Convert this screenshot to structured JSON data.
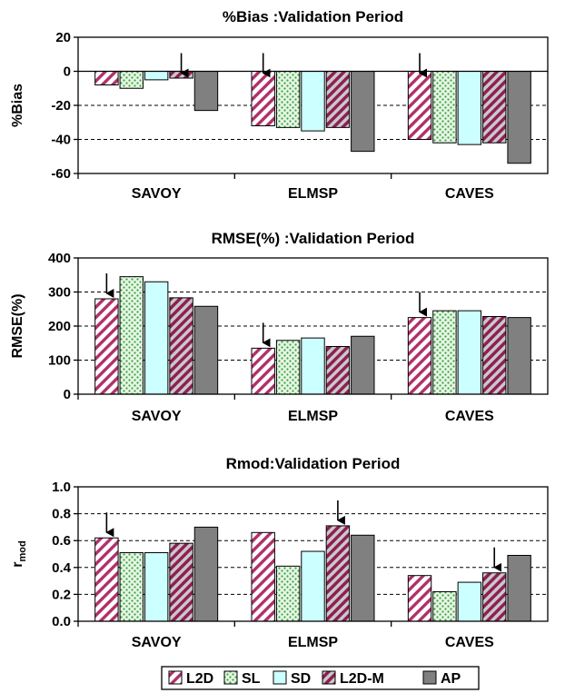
{
  "chart_data": [
    {
      "type": "bar",
      "title": "%Bias :Validation Period",
      "ylabel": "%Bias",
      "xlabel": "",
      "categories": [
        "SAVOY",
        "ELMSP",
        "CAVES"
      ],
      "ylim": [
        -60,
        20
      ],
      "yticks": [
        "20",
        "0",
        "-20",
        "-40",
        "-60"
      ],
      "grid": "dashed horizontal",
      "series": [
        {
          "name": "L2D",
          "values": [
            -8,
            -32,
            -40
          ]
        },
        {
          "name": "SL",
          "values": [
            -10,
            -33,
            -42
          ]
        },
        {
          "name": "SD",
          "values": [
            -5,
            -35,
            -43
          ]
        },
        {
          "name": "L2D-M",
          "values": [
            -4,
            -33,
            -42
          ]
        },
        {
          "name": "AP",
          "values": [
            -23,
            -47,
            -54
          ]
        }
      ],
      "arrows": [
        {
          "category": "SAVOY",
          "series": "L2D-M"
        },
        {
          "category": "ELMSP",
          "series": "L2D"
        },
        {
          "category": "CAVES",
          "series": "L2D"
        }
      ]
    },
    {
      "type": "bar",
      "title": "RMSE(%) :Validation Period",
      "ylabel": "RMSE(%)",
      "xlabel": "",
      "categories": [
        "SAVOY",
        "ELMSP",
        "CAVES"
      ],
      "ylim": [
        0,
        400
      ],
      "yticks": [
        "400",
        "300",
        "200",
        "100",
        "0"
      ],
      "grid": "dashed horizontal",
      "series": [
        {
          "name": "L2D",
          "values": [
            280,
            135,
            225
          ]
        },
        {
          "name": "SL",
          "values": [
            345,
            158,
            245
          ]
        },
        {
          "name": "SD",
          "values": [
            330,
            165,
            245
          ]
        },
        {
          "name": "L2D-M",
          "values": [
            283,
            140,
            228
          ]
        },
        {
          "name": "AP",
          "values": [
            258,
            170,
            225
          ]
        }
      ],
      "arrows": [
        {
          "category": "SAVOY",
          "series": "L2D"
        },
        {
          "category": "ELMSP",
          "series": "L2D"
        },
        {
          "category": "CAVES",
          "series": "L2D"
        }
      ]
    },
    {
      "type": "bar",
      "title": "Rmod:Validation Period",
      "ylabel": "r",
      "ylabel_sub": "mod",
      "xlabel": "",
      "categories": [
        "SAVOY",
        "ELMSP",
        "CAVES"
      ],
      "ylim": [
        0,
        1
      ],
      "yticks": [
        "1.0",
        "0.8",
        "0.6",
        "0.4",
        "0.2",
        "0.0"
      ],
      "grid": "dashed horizontal",
      "series": [
        {
          "name": "L2D",
          "values": [
            0.62,
            0.66,
            0.34
          ]
        },
        {
          "name": "SL",
          "values": [
            0.51,
            0.41,
            0.22
          ]
        },
        {
          "name": "SD",
          "values": [
            0.51,
            0.52,
            0.29
          ]
        },
        {
          "name": "L2D-M",
          "values": [
            0.58,
            0.71,
            0.36
          ]
        },
        {
          "name": "AP",
          "values": [
            0.7,
            0.64,
            0.49
          ]
        }
      ],
      "arrows": [
        {
          "category": "SAVOY",
          "series": "L2D"
        },
        {
          "category": "ELMSP",
          "series": "L2D-M"
        },
        {
          "category": "CAVES",
          "series": "L2D-M"
        }
      ]
    }
  ],
  "legend": {
    "position": "bottom-center",
    "items": [
      {
        "label": "L2D",
        "fill": "l2d"
      },
      {
        "label": "SL",
        "fill": "sl"
      },
      {
        "label": "SD",
        "fill": "sd"
      },
      {
        "label": "L2D-M",
        "fill": "l2dm"
      },
      {
        "label": "AP",
        "fill": "ap"
      }
    ]
  },
  "colors": {
    "l2d_stripe": "#b0306a",
    "sl_dot": "#3aa33a",
    "sl_bg": "#e6f5e6",
    "sd": "#ccffff",
    "l2dm_bg": "#c9c9c9",
    "l2dm_stripe": "#8e1f55",
    "ap": "#808080",
    "plot_bg": "#ffffff"
  }
}
